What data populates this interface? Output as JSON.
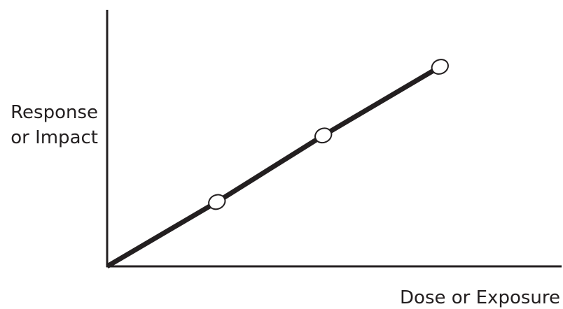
{
  "chart_data": {
    "type": "line",
    "title": "",
    "xlabel": "Dose or Exposure",
    "ylabel_lines": [
      "Response",
      "or Impact"
    ],
    "xlim": [
      0,
      10
    ],
    "ylim": [
      0,
      10
    ],
    "grid": false,
    "legend": "none",
    "series": [
      {
        "points": [
          [
            0,
            0
          ],
          [
            3.2,
            3.0
          ],
          [
            6.3,
            6.1
          ],
          [
            9.7,
            9.3
          ]
        ],
        "markers_at": [
          1,
          2,
          3
        ],
        "line_color": "#231f20",
        "marker_fill": "#ffffff"
      }
    ],
    "axis_color": "#231f20"
  }
}
